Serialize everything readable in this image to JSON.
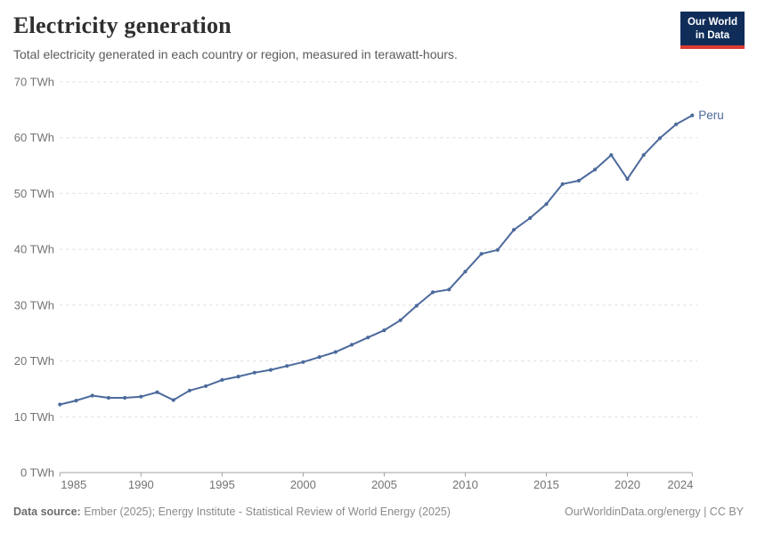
{
  "header": {
    "title": "Electricity generation",
    "subtitle": "Total electricity generated in each country or region, measured in terawatt-hours.",
    "logo": {
      "line1": "Our World",
      "line2": "in Data"
    }
  },
  "footer": {
    "source_label": "Data source:",
    "source_text": " Ember (2025); Energy Institute - Statistical Review of World Energy (2025)",
    "attribution": "OurWorldinData.org/energy | CC BY"
  },
  "chart_data": {
    "type": "line",
    "title": "Electricity generation",
    "entity": "Peru",
    "unit": "TWh",
    "end_label": "Peru",
    "x": [
      1985,
      1986,
      1987,
      1988,
      1989,
      1990,
      1991,
      1992,
      1993,
      1994,
      1995,
      1996,
      1997,
      1998,
      1999,
      2000,
      2001,
      2002,
      2003,
      2004,
      2005,
      2006,
      2007,
      2008,
      2009,
      2010,
      2011,
      2012,
      2013,
      2014,
      2015,
      2016,
      2017,
      2018,
      2019,
      2020,
      2021,
      2022,
      2023,
      2024
    ],
    "values": [
      12.2,
      12.9,
      13.8,
      13.4,
      13.4,
      13.6,
      14.4,
      13.0,
      14.7,
      15.5,
      16.6,
      17.2,
      17.9,
      18.4,
      19.1,
      19.8,
      20.7,
      21.6,
      22.9,
      24.2,
      25.5,
      27.3,
      29.9,
      32.3,
      32.8,
      36.0,
      39.2,
      39.9,
      43.5,
      45.6,
      48.1,
      51.7,
      52.3,
      54.3,
      56.9,
      52.6,
      56.9,
      59.9,
      62.4,
      64.0
    ],
    "xlabel": "",
    "ylabel": "",
    "ylim": [
      0,
      70
    ],
    "y_ticks": [
      0,
      10,
      20,
      30,
      40,
      50,
      60,
      70
    ],
    "y_tick_format": "{v} TWh",
    "x_ticks": [
      1985,
      1990,
      1995,
      2000,
      2005,
      2010,
      2015,
      2020,
      2024
    ],
    "grid": "horizontal-dashed",
    "legend_position": "line-end",
    "colors": {
      "line": "#4C6A9C",
      "end_label": "#4C6A9C",
      "gridline": "#dcdcdc",
      "axis": "#a1a1a1",
      "tick_label": "#737373"
    }
  }
}
